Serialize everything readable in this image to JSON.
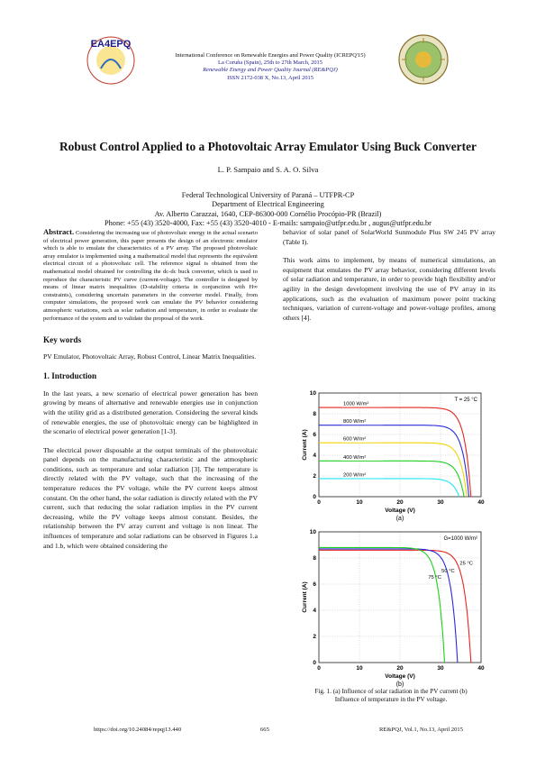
{
  "header": {
    "line1": "International Conference on Renewable Energies and Power Quality (ICREPQ'15)",
    "line2": "La Coruña (Spain), 25th to 27th March, 2015",
    "line3": "Renewable Energy and Power Quality Journal (RE&PQJ)",
    "line4": "ISSN 2172-038 X, No.13, April 2015",
    "logo_text": "EA4EPQ"
  },
  "paper": {
    "title": "Robust Control Applied to a Photovoltaic Array Emulator Using Buck Converter",
    "authors": "L. P. Sampaio and S. A. O. Silva",
    "affiliation": [
      "Federal Technological University of Paraná – UTFPR-CP",
      "Department of Electrical Engineering",
      "Av. Alberto Carazzai, 1640, CEP-86300-000 Cornélio Procópio-PR (Brazil)",
      "Phone: +55 (43) 3520-4000, Fax: +55 (43) 3520-4010  -  E-mails: sampaio@utfpr.edu.br , augus@utfpr.edu.br"
    ]
  },
  "left": {
    "abstract_label": "Abstract.",
    "abstract": "Considering the increasing use of photovoltaic energy in the actual scenario of electrical power generation, this paper presents the design of an electronic emulator which is able to emulate the characteristics of a PV array. The proposed photovoltaic array emulator is implemented using a mathematical model that represents the equivalent electrical circuit of a photovoltaic cell. The reference signal is obtained from the mathematical model obtained for controlling the dc-dc buck converter, which is used to reproduce the characteristic PV curve (current-voltage). The controller is designed by means of linear matrix inequalities (D-stability criteria in conjunction with H∞ constraints), considering uncertain parameters in the converter model. Finally, from computer simulations, the proposed work can emulate the PV behavior considering atmospheric variations, such as solar radiation and temperature, in order to evaluate the performance of the system and to validate the proposal of the work.",
    "keywords_heading": "Key words",
    "keywords": "PV Emulator, Photovoltaic Array, Robust Control, Linear Matrix Inequalities.",
    "intro_heading": "1.   Introduction",
    "p1": "In the last years, a new scenario of electrical power generation has been growing by means of alternative and renewable energies use in conjunction with the utility grid as a distributed generation. Considering the several kinds of renewable energies, the use of photovoltaic energy can be highlighted in the scenario of electrical power generation [1-3].",
    "p2": "The electrical power disposable at the output terminals of the photovoltaic panel depends on the manufacturing characteristic and the atmospheric conditions, such as temperature and solar radiation [3]. The temperature is directly related with the PV voltage, such that the increasing of the temperature reduces the PV voltage, while the PV current keeps almost constant. On the other hand, the solar radiation is directly related with the PV current, such that reducing the solar radiation implies in the PV current decreasing, while the PV voltage keeps almost constant. Besides, the relationship between the PV array current and voltage is non linear. The influences of temperature and solar radiations can be observed in Figures 1.a and 1.b, which were obtained considering the"
  },
  "right": {
    "p1": "behavior of solar panel of SolarWorld Sunmodule Plus SW 245 PV array (Table I).",
    "p2": "This work aims to implement, by means of numerical simulations, an equipment that emulates the PV array behavior, considering different levels of solar radiation and temperature, in order to provide high flexibility and/or agility in the design development involving the use of PV array in its applications, such as the evaluation of maximum power point tracking techniques, variation of current-voltage and power-voltage profiles, among others [4].",
    "caption_line1": "Fig. 1. (a) Influence of solar radiation in the PV current (b)",
    "caption_line2": "Influence of temperature in the PV voltage."
  },
  "footer": {
    "doi": "https://doi.org/10.24084/repqj13.440",
    "page": "665",
    "journal": "RE&PQJ, Vol.1, No.13, April 2015"
  },
  "chart_data": [
    {
      "type": "line",
      "panel_label": "(a)",
      "xlabel": "Voltage (V)",
      "ylabel": "Current (A)",
      "xlim": [
        0,
        40
      ],
      "ylim": [
        0,
        10
      ],
      "xticks": [
        0,
        10,
        20,
        30,
        40
      ],
      "yticks": [
        0,
        2,
        4,
        6,
        8,
        10
      ],
      "annotation": "T = 25 °C",
      "series": [
        {
          "name": "1000 W/m²",
          "color": "#e8251f",
          "isc": 8.6,
          "voc": 37.5
        },
        {
          "name": "800 W/m²",
          "color": "#2a2ae0",
          "isc": 6.9,
          "voc": 37.0
        },
        {
          "name": "600 W/m²",
          "color": "#f2d400",
          "isc": 5.2,
          "voc": 36.5
        },
        {
          "name": "400 W/m²",
          "color": "#1ecf1e",
          "isc": 3.45,
          "voc": 35.8
        },
        {
          "name": "200 W/m²",
          "color": "#1fe6f0",
          "isc": 1.75,
          "voc": 34.6
        }
      ]
    },
    {
      "type": "line",
      "panel_label": "(b)",
      "xlabel": "Voltage (V)",
      "ylabel": "Current (A)",
      "xlim": [
        0,
        40
      ],
      "ylim": [
        0,
        10
      ],
      "xticks": [
        0,
        10,
        20,
        30,
        40
      ],
      "yticks": [
        0,
        2,
        4,
        6,
        8,
        10
      ],
      "annotation": "G=1000 W/m²",
      "series": [
        {
          "name": "25 °C",
          "color": "#e8251f",
          "isc": 8.6,
          "voc": 37.5
        },
        {
          "name": "50 °C",
          "color": "#2a2ae0",
          "isc": 8.7,
          "voc": 34.2
        },
        {
          "name": "75 °C",
          "color": "#1ecf1e",
          "isc": 8.8,
          "voc": 31.0
        }
      ]
    }
  ]
}
